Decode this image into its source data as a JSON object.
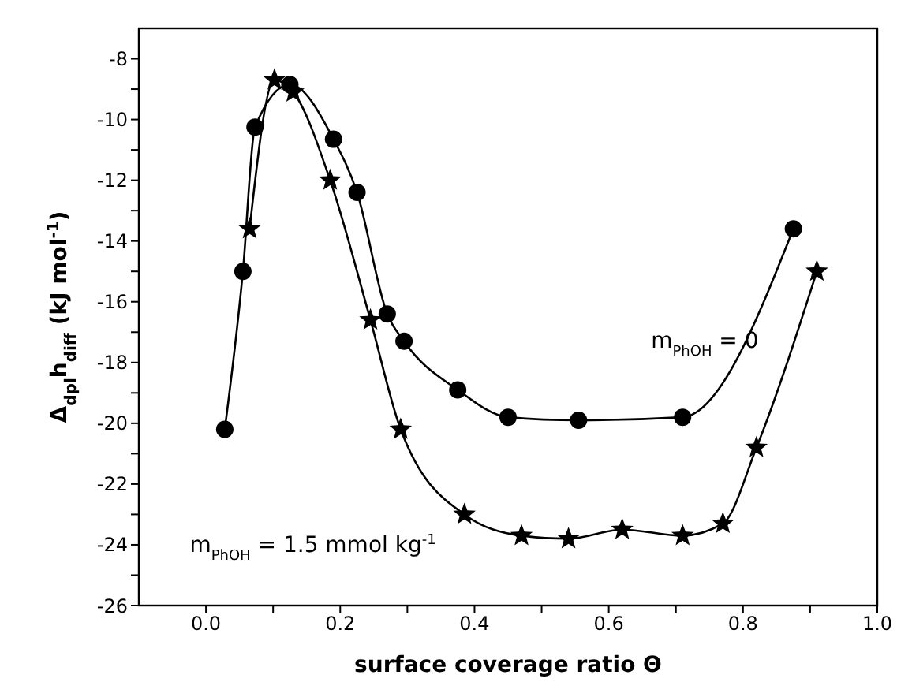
{
  "chart_data": {
    "type": "line",
    "xlabel": "surface coverage ratio Θ",
    "ylabel": "Δ$_{dpl}$h$_{diff}$ (kJ mol$^{-1}$)",
    "xlim": [
      -0.1,
      1.0
    ],
    "ylim": [
      -26,
      -7
    ],
    "xticks": [
      {
        "value": 0,
        "label": "0.0"
      },
      {
        "value": 0.1,
        "label": null
      },
      {
        "value": 0.2,
        "label": "0.2"
      },
      {
        "value": 0.3,
        "label": null
      },
      {
        "value": 0.4,
        "label": "0.4"
      },
      {
        "value": 0.5,
        "label": null
      },
      {
        "value": 0.6,
        "label": "0.6"
      },
      {
        "value": 0.7,
        "label": null
      },
      {
        "value": 0.8,
        "label": "0.8"
      },
      {
        "value": 0.9,
        "label": null
      },
      {
        "value": 1,
        "label": "1.0"
      }
    ],
    "yticks": [
      -26,
      {
        "value": -25,
        "label": null
      },
      -24,
      {
        "value": -23,
        "label": null
      },
      -22,
      {
        "value": -21,
        "label": null
      },
      -20,
      {
        "value": -19,
        "label": null
      },
      -18,
      {
        "value": -17,
        "label": null
      },
      -16,
      {
        "value": -15,
        "label": null
      },
      -14,
      {
        "value": -13,
        "label": null
      },
      -12,
      {
        "value": -11,
        "label": null
      },
      -10,
      {
        "value": -9,
        "label": null
      },
      -8
    ],
    "line_style": "solid",
    "series": [
      {
        "name": "m$_{PhOH}$ = 0",
        "color": "#000000",
        "marker": "circle",
        "x": [
          0.028,
          0.055,
          0.073,
          0.125,
          0.19,
          0.225,
          0.27,
          0.295,
          0.375,
          0.45,
          0.555,
          0.71,
          0.875
        ],
        "values": [
          -20.2,
          -15,
          -10.25,
          -8.85,
          -10.65,
          -12.4,
          -16.4,
          -17.3,
          -18.9,
          -19.8,
          -19.9,
          -19.8,
          -13.6
        ]
      },
      {
        "name": "m$_{PhOH}$ = 1.5 mmol kg$^{-1}$",
        "color": "#000000",
        "marker": "star",
        "x": [
          0.065,
          0.102,
          0.13,
          0.185,
          0.245,
          0.29,
          0.385,
          0.47,
          0.54,
          0.62,
          0.71,
          0.77,
          0.82,
          0.91
        ],
        "values": [
          -13.6,
          -8.7,
          -9.1,
          -12,
          -16.6,
          -20.2,
          -23,
          -23.7,
          -23.8,
          -23.5,
          -23.7,
          -23.3,
          -20.8,
          -15
        ]
      }
    ]
  }
}
